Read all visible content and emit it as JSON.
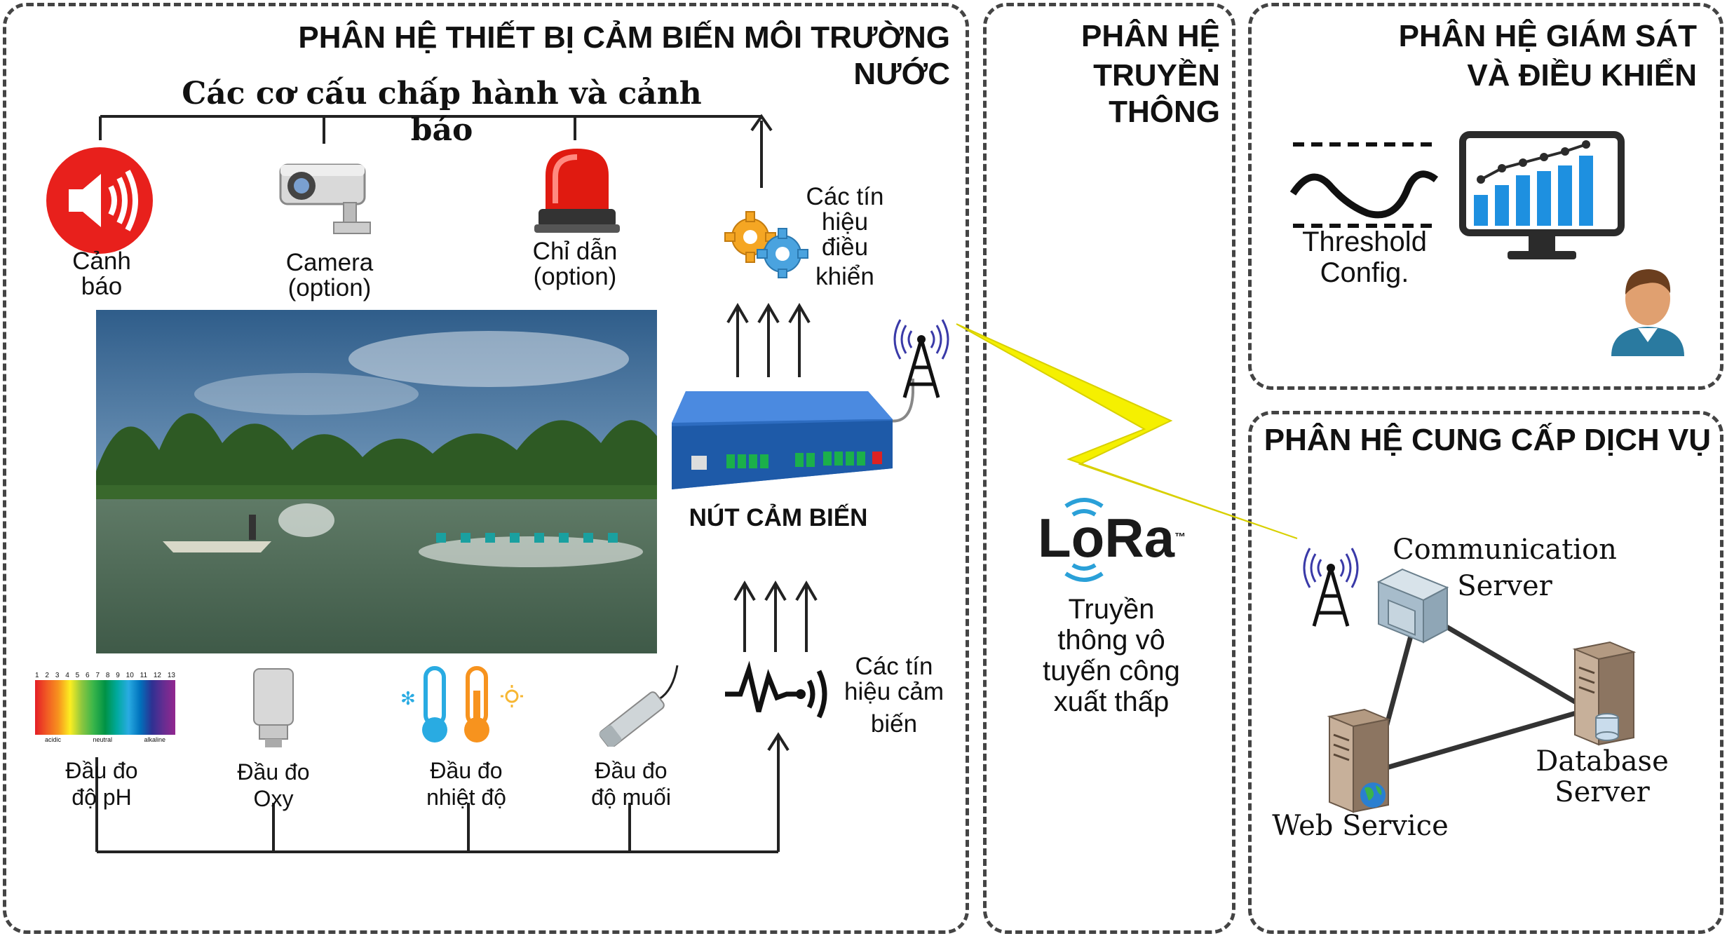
{
  "subsystems": {
    "sensor": "PHÂN HỆ THIẾT BỊ CẢM BIẾN MÔI TRƯỜNG NƯỚC",
    "comm_line1": "PHÂN HỆ",
    "comm_line2": "TRUYỀN THÔNG",
    "monitor_line1": "PHÂN HỆ GIÁM SÁT",
    "monitor_line2": "VÀ ĐIỀU KHIỂN",
    "service": "PHÂN HỆ CUNG CẤP DỊCH VỤ"
  },
  "actuators": {
    "heading": "Các cơ cấu chấp hành và cảnh báo",
    "alarm": [
      "Cảnh",
      "báo"
    ],
    "camera": [
      "Camera",
      "(option)"
    ],
    "beacon": [
      "Chỉ dẫn",
      "(option)"
    ]
  },
  "control_signals": [
    "Các tín",
    "hiệu",
    "điều",
    "khiển"
  ],
  "sensor_node": "NÚT CẢM BIẾN",
  "sensor_signals": [
    "Các tín",
    "hiệu cảm",
    "biến"
  ],
  "probes": {
    "ph": [
      "Đầu đo",
      "độ pH"
    ],
    "oxy": [
      "Đầu đo",
      "Oxy"
    ],
    "temp": [
      "Đầu đo",
      "nhiệt độ"
    ],
    "salt": [
      "Đầu đo",
      "độ muối"
    ],
    "ph_scale_numbers": [
      "1",
      "2",
      "3",
      "4",
      "5",
      "6",
      "7",
      "8",
      "9",
      "10",
      "11",
      "12",
      "13"
    ],
    "ph_scale_words": [
      "acidic",
      "neutral",
      "alkaline"
    ]
  },
  "lora": {
    "logo": "LoRa",
    "tm": "™",
    "desc": [
      "Truyền",
      "thông vô",
      "tuyến công",
      "xuất thấp"
    ]
  },
  "monitor": {
    "threshold": [
      "Threshold",
      "Config."
    ]
  },
  "services": {
    "comm_server": [
      "Communication",
      "Server"
    ],
    "db_server": "Database Server",
    "web_service": "Web Service"
  },
  "colors": {
    "panel_border": "#444444",
    "node_blue": "#1e5aa8",
    "chart_blue": "#1e90e0",
    "alarm_red": "#e8201c",
    "lightning": "#f5f000",
    "lora_blue": "#2aa0d8"
  }
}
